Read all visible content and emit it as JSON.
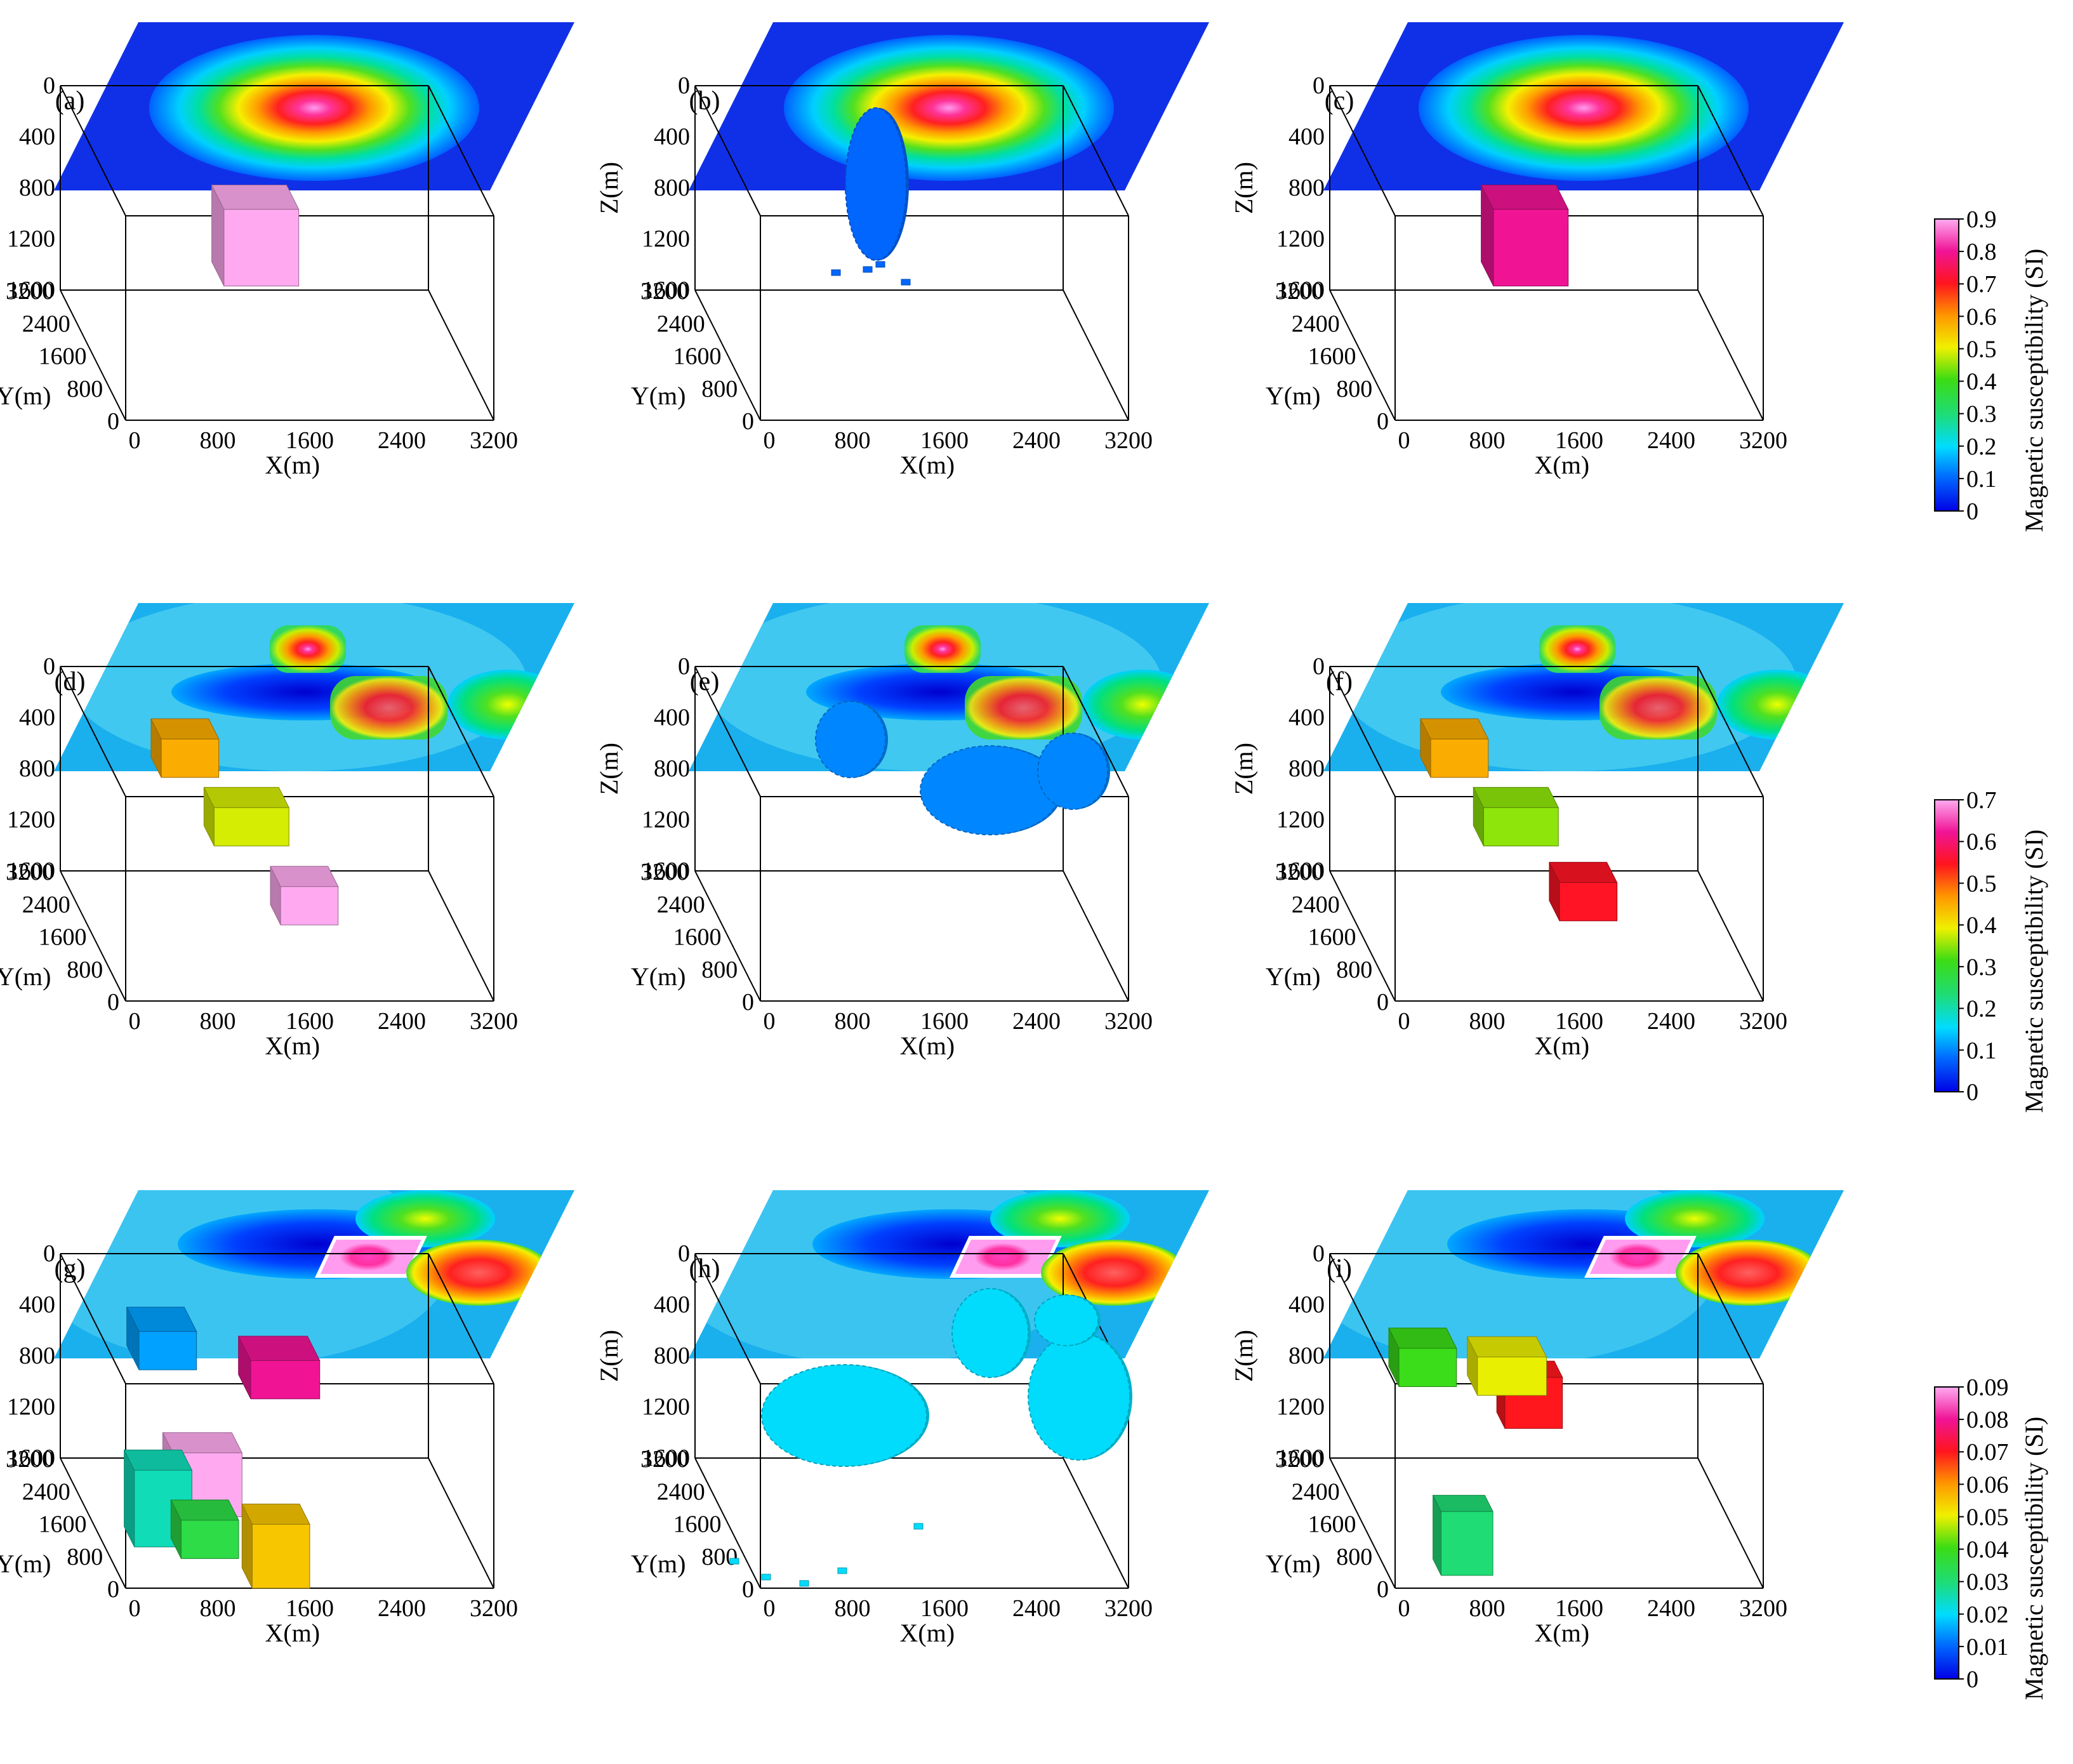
{
  "figure": {
    "rows": [
      {
        "colorbar": {
          "title": "Magnetic susceptibility (SI)",
          "ticks": [
            "0",
            "0.1",
            "0.2",
            "0.3",
            "0.4",
            "0.5",
            "0.6",
            "0.7",
            "0.8",
            "0.9"
          ],
          "max": 0.9
        },
        "anomaly_map": {
          "type": "single"
        },
        "panels": [
          {
            "label": "(a)",
            "kind": "true-model",
            "blocks": [
              {
                "value": 0.9
              }
            ]
          },
          {
            "label": "(b)",
            "kind": "smooth-inversion",
            "blobs": [
              {
                "value": 0.1
              }
            ]
          },
          {
            "label": "(c)",
            "kind": "focused-inversion",
            "blocks": [
              {
                "value": 0.8
              }
            ]
          }
        ]
      },
      {
        "colorbar": {
          "title": "Magnetic susceptibility (SI)",
          "ticks": [
            "0",
            "0.1",
            "0.2",
            "0.3",
            "0.4",
            "0.5",
            "0.6",
            "0.7"
          ],
          "max": 0.7
        },
        "anomaly_map": {
          "type": "three-blocks"
        },
        "panels": [
          {
            "label": "(d)",
            "kind": "true-model",
            "blocks": [
              {
                "value": 0.45
              },
              {
                "value": 0.38
              },
              {
                "value": 0.7
              }
            ]
          },
          {
            "label": "(e)",
            "kind": "smooth-inversion",
            "blobs": [
              {
                "value": 0.1
              }
            ]
          },
          {
            "label": "(f)",
            "kind": "focused-inversion",
            "blocks": [
              {
                "value": 0.45
              },
              {
                "value": 0.35
              },
              {
                "value": 0.55
              }
            ]
          }
        ]
      },
      {
        "colorbar": {
          "title": "Magnetic susceptibility (SI)",
          "ticks": [
            "0",
            "0.01",
            "0.02",
            "0.03",
            "0.04",
            "0.05",
            "0.06",
            "0.07",
            "0.08",
            "0.09"
          ],
          "max": 0.09
        },
        "anomaly_map": {
          "type": "complex"
        },
        "panels": [
          {
            "label": "(g)",
            "kind": "true-model",
            "blocks": [
              {
                "value": 0.015
              },
              {
                "value": 0.08
              },
              {
                "value": 0.09
              },
              {
                "value": 0.025
              },
              {
                "value": 0.035
              },
              {
                "value": 0.055
              }
            ]
          },
          {
            "label": "(h)",
            "kind": "smooth-inversion",
            "blobs": [
              {
                "value": 0.02
              }
            ]
          },
          {
            "label": "(i)",
            "kind": "focused-inversion",
            "blocks": [
              {
                "value": 0.04
              },
              {
                "value": 0.07
              },
              {
                "value": 0.03
              },
              {
                "value": 0.05
              }
            ]
          }
        ]
      }
    ],
    "axes": {
      "z_label": "Z(m)",
      "y_label": "Y(m)",
      "x_label": "X(m)",
      "z_ticks": [
        "0",
        "400",
        "800",
        "1200",
        "1600"
      ],
      "y_ticks": [
        "3200",
        "2400",
        "1600",
        "800",
        "0"
      ],
      "x_ticks": [
        "0",
        "800",
        "1600",
        "2400",
        "3200"
      ]
    }
  }
}
